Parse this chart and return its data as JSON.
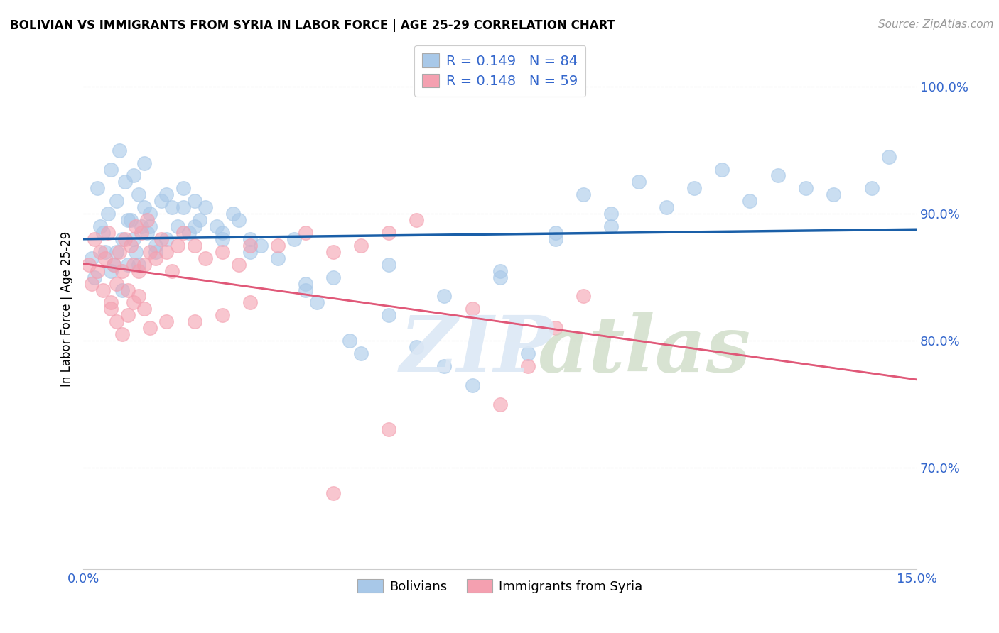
{
  "title": "BOLIVIAN VS IMMIGRANTS FROM SYRIA IN LABOR FORCE | AGE 25-29 CORRELATION CHART",
  "source": "Source: ZipAtlas.com",
  "ylabel": "In Labor Force | Age 25-29",
  "xmin": 0.0,
  "xmax": 15.0,
  "ymin": 62.0,
  "ymax": 103.0,
  "yticks": [
    70.0,
    80.0,
    90.0,
    100.0
  ],
  "ytick_labels": [
    "70.0%",
    "80.0%",
    "90.0%",
    "100.0%"
  ],
  "legend_r1": "R = 0.149",
  "legend_n1": "N = 84",
  "legend_r2": "R = 0.148",
  "legend_n2": "N = 59",
  "blue_color": "#a8c8e8",
  "pink_color": "#f4a0b0",
  "blue_line_color": "#1a5fa8",
  "pink_line_color": "#e05878",
  "blue_x": [
    0.15,
    0.2,
    0.25,
    0.3,
    0.35,
    0.4,
    0.45,
    0.5,
    0.55,
    0.6,
    0.65,
    0.7,
    0.75,
    0.8,
    0.85,
    0.9,
    0.95,
    1.0,
    1.05,
    1.1,
    1.15,
    1.2,
    1.3,
    1.4,
    1.5,
    1.6,
    1.7,
    1.8,
    1.9,
    2.0,
    2.1,
    2.2,
    2.4,
    2.5,
    2.7,
    2.8,
    3.0,
    3.2,
    3.5,
    3.8,
    4.0,
    4.2,
    4.5,
    4.8,
    5.0,
    5.5,
    6.0,
    6.5,
    7.0,
    7.5,
    8.0,
    8.5,
    9.0,
    9.5,
    10.0,
    11.0,
    11.5,
    12.0,
    12.5,
    13.5,
    14.2,
    0.6,
    0.7,
    0.8,
    0.9,
    1.0,
    1.1,
    1.2,
    1.3,
    1.5,
    1.8,
    2.0,
    2.5,
    3.0,
    4.0,
    5.5,
    6.5,
    7.5,
    8.5,
    9.5,
    10.5,
    13.0,
    14.5,
    0.5
  ],
  "blue_y": [
    86.5,
    85.0,
    92.0,
    89.0,
    88.5,
    87.0,
    90.0,
    93.5,
    86.0,
    91.0,
    95.0,
    88.0,
    92.5,
    86.0,
    89.5,
    93.0,
    87.0,
    91.5,
    89.0,
    94.0,
    88.5,
    90.0,
    87.5,
    91.0,
    88.0,
    90.5,
    89.0,
    92.0,
    88.5,
    91.0,
    89.5,
    90.5,
    89.0,
    88.0,
    90.0,
    89.5,
    88.0,
    87.5,
    86.5,
    88.0,
    84.5,
    83.0,
    85.0,
    80.0,
    79.0,
    82.0,
    79.5,
    78.0,
    76.5,
    85.0,
    79.0,
    88.0,
    91.5,
    90.0,
    92.5,
    92.0,
    93.5,
    91.0,
    93.0,
    91.5,
    92.0,
    87.0,
    84.0,
    89.5,
    88.0,
    86.0,
    90.5,
    89.0,
    87.0,
    91.5,
    90.5,
    89.0,
    88.5,
    87.0,
    84.0,
    86.0,
    83.5,
    85.5,
    88.5,
    89.0,
    90.5,
    92.0,
    94.5,
    85.5
  ],
  "pink_x": [
    0.1,
    0.15,
    0.2,
    0.25,
    0.3,
    0.35,
    0.4,
    0.45,
    0.5,
    0.55,
    0.6,
    0.65,
    0.7,
    0.75,
    0.8,
    0.85,
    0.9,
    0.95,
    1.0,
    1.05,
    1.1,
    1.15,
    1.2,
    1.3,
    1.4,
    1.5,
    1.6,
    1.7,
    1.8,
    2.0,
    2.2,
    2.5,
    2.8,
    3.0,
    3.5,
    4.0,
    4.5,
    5.0,
    5.5,
    6.0,
    0.5,
    0.6,
    0.7,
    0.8,
    0.9,
    1.0,
    1.1,
    1.2,
    1.5,
    2.0,
    2.5,
    3.0,
    4.5,
    5.5,
    7.0,
    7.5,
    8.0,
    8.5,
    9.0
  ],
  "pink_y": [
    86.0,
    84.5,
    88.0,
    85.5,
    87.0,
    84.0,
    86.5,
    88.5,
    83.0,
    86.0,
    84.5,
    87.0,
    85.5,
    88.0,
    84.0,
    87.5,
    86.0,
    89.0,
    85.5,
    88.5,
    86.0,
    89.5,
    87.0,
    86.5,
    88.0,
    87.0,
    85.5,
    87.5,
    88.5,
    87.5,
    86.5,
    87.0,
    86.0,
    87.5,
    87.5,
    88.5,
    87.0,
    87.5,
    88.5,
    89.5,
    82.5,
    81.5,
    80.5,
    82.0,
    83.0,
    83.5,
    82.5,
    81.0,
    81.5,
    81.5,
    82.0,
    83.0,
    68.0,
    73.0,
    82.5,
    75.0,
    78.0,
    81.0,
    83.5
  ]
}
